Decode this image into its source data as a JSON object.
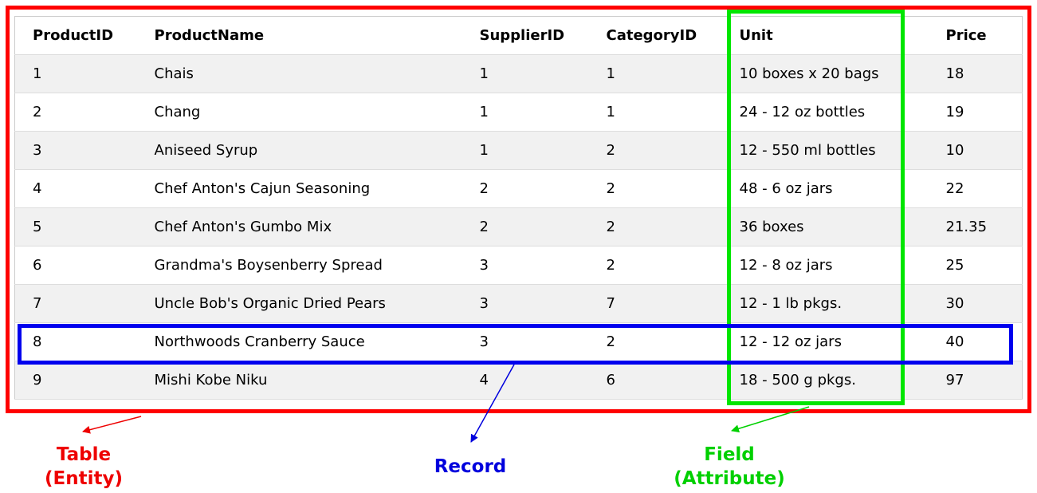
{
  "table": {
    "columns": [
      "ProductID",
      "ProductName",
      "SupplierID",
      "CategoryID",
      "Unit",
      "Price"
    ],
    "rows": [
      [
        "1",
        "Chais",
        "1",
        "1",
        "10 boxes x 20 bags",
        "18"
      ],
      [
        "2",
        "Chang",
        "1",
        "1",
        "24 - 12 oz bottles",
        "19"
      ],
      [
        "3",
        "Aniseed Syrup",
        "1",
        "2",
        "12 - 550 ml bottles",
        "10"
      ],
      [
        "4",
        "Chef Anton's Cajun Seasoning",
        "2",
        "2",
        "48 - 6 oz jars",
        "22"
      ],
      [
        "5",
        "Chef Anton's Gumbo Mix",
        "2",
        "2",
        "36 boxes",
        "21.35"
      ],
      [
        "6",
        "Grandma's Boysenberry Spread",
        "3",
        "2",
        "12 - 8 oz jars",
        "25"
      ],
      [
        "7",
        "Uncle Bob's Organic Dried Pears",
        "3",
        "7",
        "12 - 1 lb pkgs.",
        "30"
      ],
      [
        "8",
        "Northwoods Cranberry Sauce",
        "3",
        "2",
        "12 - 12 oz jars",
        "40"
      ],
      [
        "9",
        "Mishi Kobe Niku",
        "4",
        "6",
        "18 - 500 g pkgs.",
        "97"
      ]
    ]
  },
  "annotations": {
    "table": {
      "line1": "Table",
      "line2": "(Entity)",
      "color": "#ee0000"
    },
    "record": {
      "line1": "Record",
      "color": "#0000dd"
    },
    "field": {
      "line1": "Field",
      "line2": "(Attribute)",
      "color": "#00d000"
    }
  }
}
